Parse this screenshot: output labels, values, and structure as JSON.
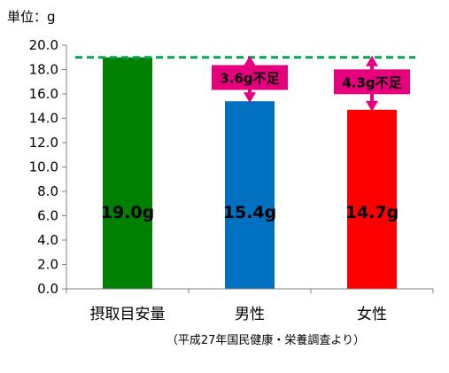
{
  "colors": {
    "target_line": "#00a651",
    "gap_arrow": "#e6007e",
    "axis": "#808080"
  },
  "chart_data": {
    "type": "bar",
    "unit_label": "単位：g",
    "categories": [
      "摂取目安量",
      "男性",
      "女性"
    ],
    "values": [
      19.0,
      15.4,
      14.7
    ],
    "bar_labels": [
      "19.0g",
      "15.4g",
      "14.7g"
    ],
    "bar_colors": [
      "#008000",
      "#0070c0",
      "#ff0000"
    ],
    "ylim": [
      0,
      20
    ],
    "yticks": [
      "0.0",
      "2.0",
      "4.0",
      "6.0",
      "8.0",
      "10.0",
      "12.0",
      "14.0",
      "16.0",
      "18.0",
      "20.0"
    ],
    "target_value": 19.0,
    "shortfalls": [
      {
        "category": "男性",
        "from": 15.4,
        "to": 19.0,
        "label": "3.6g不足"
      },
      {
        "category": "女性",
        "from": 14.7,
        "to": 19.0,
        "label": "4.3g不足"
      }
    ],
    "source_note": "（平成27年国民健康・栄養調査より）",
    "grid": false
  }
}
